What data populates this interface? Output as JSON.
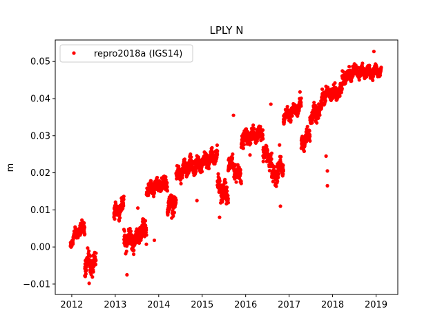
{
  "chart_data": {
    "type": "scatter",
    "title": "LPLY N",
    "xlabel": "",
    "ylabel": "m",
    "xlim": [
      2011.62,
      2019.5
    ],
    "ylim": [
      -0.0128,
      0.0558
    ],
    "xticks": [
      {
        "value": 2012,
        "label": "2012"
      },
      {
        "value": 2013,
        "label": "2013"
      },
      {
        "value": 2014,
        "label": "2014"
      },
      {
        "value": 2015,
        "label": "2015"
      },
      {
        "value": 2016,
        "label": "2016"
      },
      {
        "value": 2017,
        "label": "2017"
      },
      {
        "value": 2018,
        "label": "2018"
      },
      {
        "value": 2019,
        "label": "2019"
      }
    ],
    "yticks": [
      {
        "value": -0.01,
        "label": "−0.01"
      },
      {
        "value": 0.0,
        "label": "0.00"
      },
      {
        "value": 0.01,
        "label": "0.01"
      },
      {
        "value": 0.02,
        "label": "0.02"
      },
      {
        "value": 0.03,
        "label": "0.03"
      },
      {
        "value": 0.04,
        "label": "0.04"
      },
      {
        "value": 0.05,
        "label": "0.05"
      }
    ],
    "grid": false,
    "legend_position": "upper-left",
    "series": [
      {
        "name": "repro2018a (IGS14)",
        "color": "#ff0000",
        "marker": "circle",
        "segments": [
          {
            "x0": 2011.97,
            "x1": 2012.08,
            "y0": 0.0005,
            "y1": 0.0035,
            "spread": 0.0018
          },
          {
            "x0": 2012.08,
            "x1": 2012.3,
            "y0": 0.0035,
            "y1": 0.0055,
            "spread": 0.0022
          },
          {
            "x0": 2012.3,
            "x1": 2012.56,
            "y0": -0.004,
            "y1": -0.005,
            "spread": 0.0035
          },
          {
            "x0": 2012.97,
            "x1": 2013.2,
            "y0": 0.009,
            "y1": 0.0115,
            "spread": 0.0025
          },
          {
            "x0": 2013.2,
            "x1": 2013.5,
            "y0": 0.002,
            "y1": 0.002,
            "spread": 0.0035
          },
          {
            "x0": 2013.5,
            "x1": 2013.72,
            "y0": 0.003,
            "y1": 0.005,
            "spread": 0.0035
          },
          {
            "x0": 2013.72,
            "x1": 2014.2,
            "y0": 0.0155,
            "y1": 0.0175,
            "spread": 0.0025
          },
          {
            "x0": 2014.2,
            "x1": 2014.4,
            "y0": 0.011,
            "y1": 0.012,
            "spread": 0.003
          },
          {
            "x0": 2014.4,
            "x1": 2014.75,
            "y0": 0.019,
            "y1": 0.022,
            "spread": 0.003
          },
          {
            "x0": 2014.75,
            "x1": 2015.35,
            "y0": 0.021,
            "y1": 0.025,
            "spread": 0.0028
          },
          {
            "x0": 2015.35,
            "x1": 2015.6,
            "y0": 0.0165,
            "y1": 0.0135,
            "spread": 0.0035
          },
          {
            "x0": 2015.6,
            "x1": 2015.9,
            "y0": 0.023,
            "y1": 0.019,
            "spread": 0.003
          },
          {
            "x0": 2015.9,
            "x1": 2016.4,
            "y0": 0.029,
            "y1": 0.031,
            "spread": 0.0025
          },
          {
            "x0": 2016.4,
            "x1": 2016.6,
            "y0": 0.026,
            "y1": 0.023,
            "spread": 0.003
          },
          {
            "x0": 2016.6,
            "x1": 2016.87,
            "y0": 0.0185,
            "y1": 0.022,
            "spread": 0.0035
          },
          {
            "x0": 2016.87,
            "x1": 2017.28,
            "y0": 0.035,
            "y1": 0.038,
            "spread": 0.0022
          },
          {
            "x0": 2017.28,
            "x1": 2017.48,
            "y0": 0.028,
            "y1": 0.0305,
            "spread": 0.003
          },
          {
            "x0": 2017.48,
            "x1": 2017.75,
            "y0": 0.035,
            "y1": 0.037,
            "spread": 0.0028
          },
          {
            "x0": 2017.75,
            "x1": 2018.22,
            "y0": 0.041,
            "y1": 0.042,
            "spread": 0.0025
          },
          {
            "x0": 2018.22,
            "x1": 2018.6,
            "y0": 0.0455,
            "y1": 0.048,
            "spread": 0.0022
          },
          {
            "x0": 2018.6,
            "x1": 2019.12,
            "y0": 0.047,
            "y1": 0.0475,
            "spread": 0.0022
          }
        ],
        "outliers": [
          [
            2013.27,
            -0.0075
          ],
          [
            2013.52,
            0.0105
          ],
          [
            2013.9,
            0.0018
          ],
          [
            2014.88,
            0.0125
          ],
          [
            2015.72,
            0.0355
          ],
          [
            2016.1,
            0.0248
          ],
          [
            2016.58,
            0.0385
          ],
          [
            2016.78,
            0.0275
          ],
          [
            2017.25,
            0.0418
          ],
          [
            2017.88,
            0.0165
          ],
          [
            2017.88,
            0.0205
          ],
          [
            2017.85,
            0.0245
          ],
          [
            2018.95,
            0.0527
          ],
          [
            2017.6,
            0.038
          ],
          [
            2015.4,
            0.008
          ],
          [
            2012.4,
            -0.0098
          ],
          [
            2014.3,
            0.0078
          ],
          [
            2016.8,
            0.011
          ]
        ]
      }
    ]
  }
}
